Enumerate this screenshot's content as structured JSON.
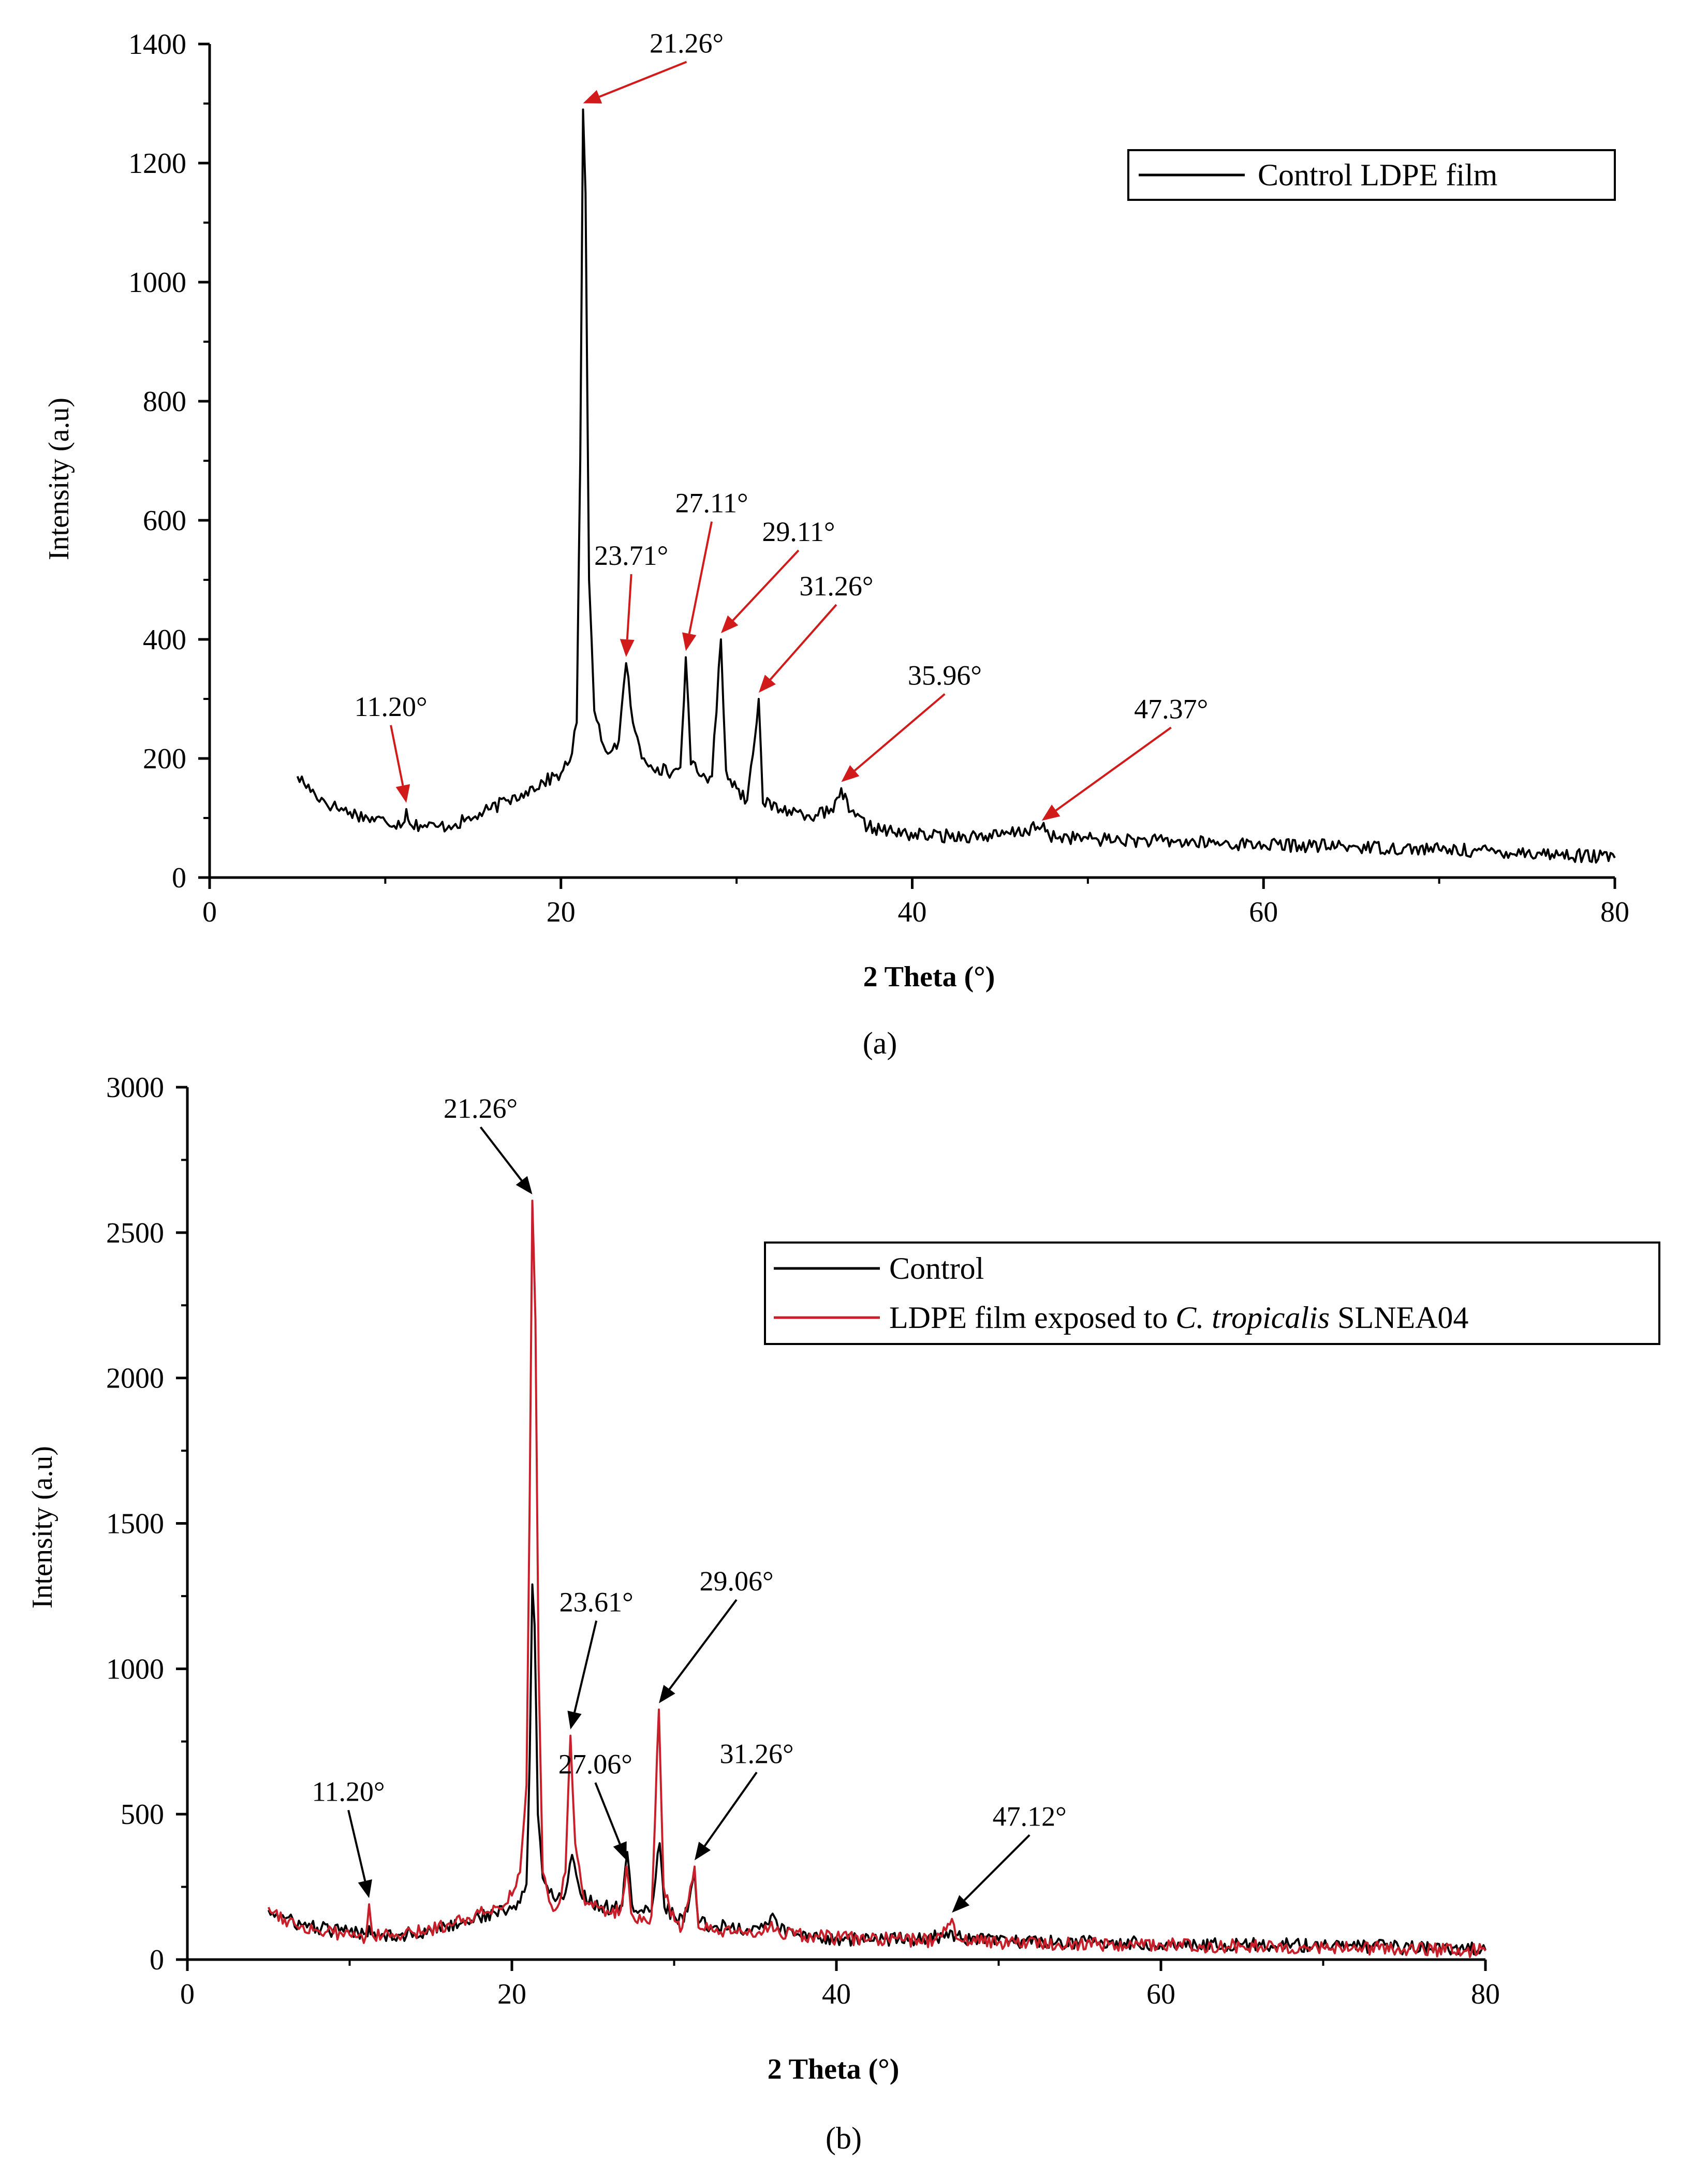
{
  "colors": {
    "control": "#000000",
    "exposed": "#c8202a",
    "arrow_red": "#d11b1b",
    "arrow_black": "#000000",
    "axis": "#000000"
  },
  "chart_data": [
    {
      "type": "line",
      "panel_label": "(a)",
      "xlabel": "2 Theta (°)",
      "ylabel": "Intensity (a.u)",
      "xlim": [
        0,
        80
      ],
      "ylim": [
        0,
        1400
      ],
      "xticks": [
        0,
        20,
        40,
        60,
        80
      ],
      "yticks": [
        0,
        200,
        400,
        600,
        800,
        1000,
        1200,
        1400
      ],
      "legend_position": "top-right",
      "series": [
        {
          "name": "Control LDPE film",
          "color": "#000000",
          "points": [
            [
              5,
              170
            ],
            [
              6,
              140
            ],
            [
              7,
              120
            ],
            [
              8,
              110
            ],
            [
              9,
              100
            ],
            [
              10,
              95
            ],
            [
              11,
              90
            ],
            [
              11.2,
              115
            ],
            [
              11.4,
              90
            ],
            [
              12,
              88
            ],
            [
              13,
              85
            ],
            [
              14,
              90
            ],
            [
              15,
              100
            ],
            [
              16,
              115
            ],
            [
              17,
              130
            ],
            [
              18,
              145
            ],
            [
              19,
              160
            ],
            [
              20,
              175
            ],
            [
              20.5,
              195
            ],
            [
              20.9,
              260
            ],
            [
              21.1,
              700
            ],
            [
              21.26,
              1290
            ],
            [
              21.4,
              1150
            ],
            [
              21.6,
              500
            ],
            [
              21.9,
              280
            ],
            [
              22.3,
              230
            ],
            [
              22.8,
              210
            ],
            [
              23.3,
              230
            ],
            [
              23.71,
              360
            ],
            [
              24.1,
              260
            ],
            [
              24.6,
              200
            ],
            [
              25.5,
              185
            ],
            [
              26.3,
              175
            ],
            [
              26.8,
              185
            ],
            [
              27.11,
              370
            ],
            [
              27.4,
              190
            ],
            [
              28,
              170
            ],
            [
              28.6,
              170
            ],
            [
              29.11,
              400
            ],
            [
              29.4,
              180
            ],
            [
              30,
              150
            ],
            [
              30.6,
              130
            ],
            [
              31.26,
              300
            ],
            [
              31.5,
              125
            ],
            [
              32.5,
              115
            ],
            [
              33.5,
              110
            ],
            [
              34.5,
              105
            ],
            [
              35.5,
              110
            ],
            [
              35.96,
              150
            ],
            [
              36.4,
              110
            ],
            [
              37.5,
              85
            ],
            [
              39,
              75
            ],
            [
              41,
              70
            ],
            [
              43,
              70
            ],
            [
              45,
              70
            ],
            [
              47.37,
              85
            ],
            [
              47.8,
              70
            ],
            [
              50,
              65
            ],
            [
              55,
              60
            ],
            [
              60,
              55
            ],
            [
              65,
              52
            ],
            [
              70,
              47
            ],
            [
              75,
              42
            ],
            [
              80,
              33
            ]
          ]
        }
      ],
      "annotations": [
        {
          "label": "11.20°",
          "x": 11.2,
          "y": 115
        },
        {
          "label": "21.26°",
          "x": 21.26,
          "y": 1290
        },
        {
          "label": "23.71°",
          "x": 23.71,
          "y": 360
        },
        {
          "label": "27.11°",
          "x": 27.11,
          "y": 370
        },
        {
          "label": "29.11°",
          "x": 29.11,
          "y": 400
        },
        {
          "label": "31.26°",
          "x": 31.26,
          "y": 300
        },
        {
          "label": "35.96°",
          "x": 35.96,
          "y": 150
        },
        {
          "label": "47.37°",
          "x": 47.37,
          "y": 85
        }
      ]
    },
    {
      "type": "line",
      "panel_label": "(b)",
      "xlabel": "2 Theta (°)",
      "ylabel": "Intensity (a.u)",
      "xlim": [
        0,
        80
      ],
      "ylim": [
        0,
        3000
      ],
      "xticks": [
        0,
        20,
        40,
        60,
        80
      ],
      "yticks": [
        0,
        500,
        1000,
        1500,
        2000,
        2500,
        3000
      ],
      "legend_position": "top-right",
      "series": [
        {
          "name": "Control",
          "color": "#000000",
          "points": [
            [
              5,
              170
            ],
            [
              6,
              140
            ],
            [
              7,
              120
            ],
            [
              8,
              110
            ],
            [
              9,
              100
            ],
            [
              10,
              95
            ],
            [
              11,
              90
            ],
            [
              11.2,
              115
            ],
            [
              11.4,
              90
            ],
            [
              12,
              88
            ],
            [
              13,
              85
            ],
            [
              14,
              90
            ],
            [
              15,
              100
            ],
            [
              16,
              115
            ],
            [
              17,
              130
            ],
            [
              18,
              145
            ],
            [
              19,
              160
            ],
            [
              20,
              175
            ],
            [
              20.5,
              195
            ],
            [
              20.9,
              260
            ],
            [
              21.1,
              700
            ],
            [
              21.26,
              1290
            ],
            [
              21.4,
              1150
            ],
            [
              21.6,
              500
            ],
            [
              21.9,
              280
            ],
            [
              22.3,
              230
            ],
            [
              22.8,
              210
            ],
            [
              23.3,
              230
            ],
            [
              23.71,
              360
            ],
            [
              24.1,
              260
            ],
            [
              24.6,
              200
            ],
            [
              25.5,
              185
            ],
            [
              26.3,
              175
            ],
            [
              26.8,
              185
            ],
            [
              27.11,
              370
            ],
            [
              27.4,
              190
            ],
            [
              28,
              170
            ],
            [
              28.6,
              170
            ],
            [
              29.11,
              400
            ],
            [
              29.4,
              180
            ],
            [
              30,
              150
            ],
            [
              30.6,
              130
            ],
            [
              31.26,
              300
            ],
            [
              31.5,
              125
            ],
            [
              32.5,
              115
            ],
            [
              33.5,
              110
            ],
            [
              34.5,
              105
            ],
            [
              35.5,
              110
            ],
            [
              35.96,
              150
            ],
            [
              36.4,
              110
            ],
            [
              37.5,
              85
            ],
            [
              39,
              75
            ],
            [
              41,
              70
            ],
            [
              43,
              70
            ],
            [
              45,
              70
            ],
            [
              47.37,
              85
            ],
            [
              47.8,
              70
            ],
            [
              50,
              65
            ],
            [
              55,
              60
            ],
            [
              60,
              55
            ],
            [
              65,
              52
            ],
            [
              70,
              47
            ],
            [
              75,
              42
            ],
            [
              80,
              33
            ]
          ]
        },
        {
          "name": "LDPE film exposed to C. tropicalis SLNEA04",
          "color": "#c8202a",
          "points": [
            [
              5,
              180
            ],
            [
              6,
              140
            ],
            [
              7,
              115
            ],
            [
              8,
              100
            ],
            [
              9,
              90
            ],
            [
              10,
              85
            ],
            [
              11,
              80
            ],
            [
              11.2,
              190
            ],
            [
              11.4,
              85
            ],
            [
              12,
              80
            ],
            [
              13,
              80
            ],
            [
              14,
              90
            ],
            [
              15,
              105
            ],
            [
              16,
              120
            ],
            [
              17,
              140
            ],
            [
              18,
              160
            ],
            [
              19,
              180
            ],
            [
              20,
              220
            ],
            [
              20.5,
              300
            ],
            [
              20.9,
              600
            ],
            [
              21.1,
              1600
            ],
            [
              21.26,
              2610
            ],
            [
              21.45,
              2200
            ],
            [
              21.65,
              1000
            ],
            [
              21.9,
              300
            ],
            [
              22.3,
              200
            ],
            [
              22.8,
              180
            ],
            [
              23.3,
              300
            ],
            [
              23.61,
              770
            ],
            [
              23.9,
              400
            ],
            [
              24.4,
              220
            ],
            [
              25,
              180
            ],
            [
              26,
              160
            ],
            [
              26.7,
              170
            ],
            [
              27.06,
              320
            ],
            [
              27.35,
              160
            ],
            [
              28,
              130
            ],
            [
              28.6,
              150
            ],
            [
              29.06,
              860
            ],
            [
              29.35,
              250
            ],
            [
              29.8,
              150
            ],
            [
              30.5,
              110
            ],
            [
              31.26,
              320
            ],
            [
              31.5,
              110
            ],
            [
              32.5,
              95
            ],
            [
              33.5,
              90
            ],
            [
              34.5,
              85
            ],
            [
              35.5,
              95
            ],
            [
              36,
              130
            ],
            [
              36.5,
              90
            ],
            [
              38,
              80
            ],
            [
              40,
              75
            ],
            [
              42,
              70
            ],
            [
              44,
              68
            ],
            [
              46,
              66
            ],
            [
              47.12,
              140
            ],
            [
              47.5,
              70
            ],
            [
              50,
              60
            ],
            [
              55,
              55
            ],
            [
              60,
              50
            ],
            [
              65,
              47
            ],
            [
              70,
              42
            ],
            [
              75,
              37
            ],
            [
              80,
              30
            ]
          ]
        }
      ],
      "annotations": [
        {
          "label": "11.20°",
          "x": 11.2,
          "y": 190
        },
        {
          "label": "21.26°",
          "x": 21.26,
          "y": 2610
        },
        {
          "label": "23.61°",
          "x": 23.61,
          "y": 770
        },
        {
          "label": "27.06°",
          "x": 27.06,
          "y": 320
        },
        {
          "label": "29.06°",
          "x": 29.06,
          "y": 860
        },
        {
          "label": "31.26°",
          "x": 31.26,
          "y": 320
        },
        {
          "label": "47.12°",
          "x": 47.12,
          "y": 140
        }
      ]
    }
  ],
  "legend_b_parts": {
    "pre": "LDPE film exposed to ",
    "species": "C. tropicalis",
    "post": " SLNEA04"
  }
}
